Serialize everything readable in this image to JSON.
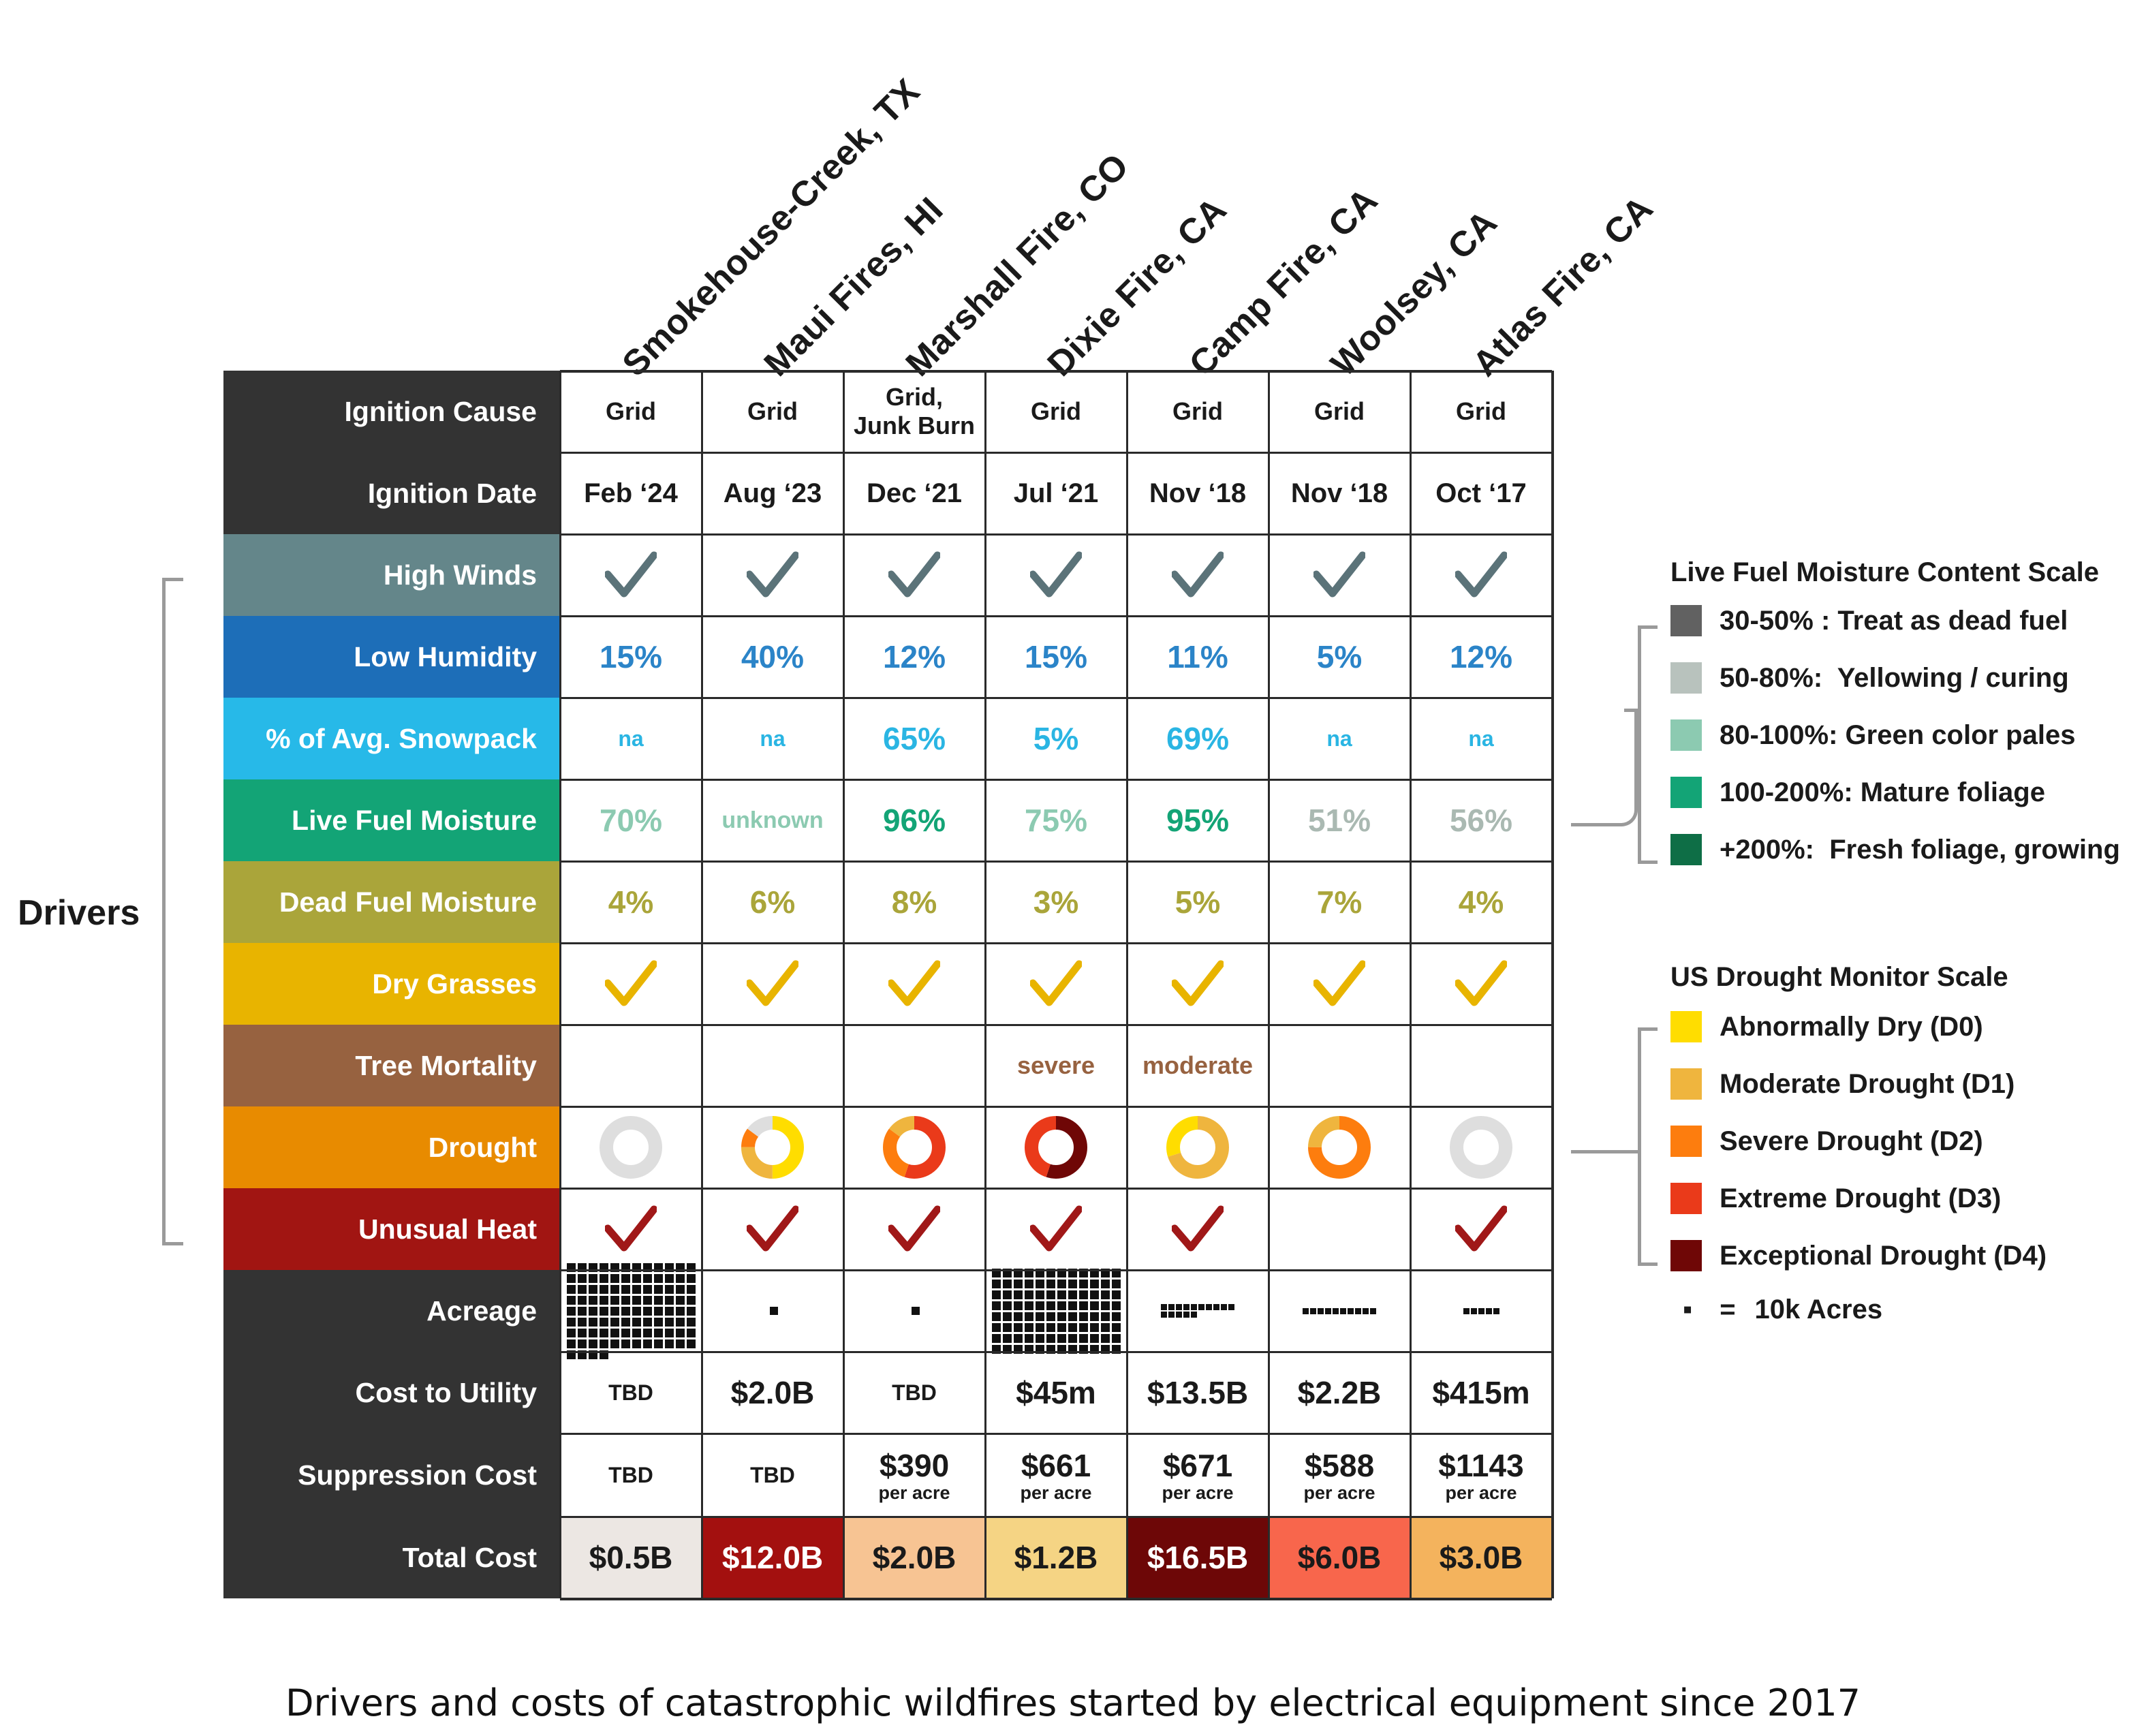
{
  "colors": {
    "label_dark": "#333333",
    "high_winds": "#64868a",
    "low_humidity": "#1d6eb8",
    "snowpack": "#27b9e8",
    "live_fuel": "#13a476",
    "dead_fuel": "#aaa53a",
    "dry_grasses": "#e8b400",
    "tree_mortality": "#976240",
    "drought": "#e88b00",
    "unusual_heat": "#a11512",
    "check_wind": "#5b7379",
    "check_grass": "#e8b400",
    "check_heat": "#a01818",
    "humidity_text": "#2b84c8",
    "snowpack_text": "#2ab5e3",
    "dead_fuel_text": "#aaa53a",
    "tree_text": "#976240"
  },
  "chart_data": {
    "type": "table",
    "columns": [
      "Smokehouse-Creek, TX",
      "Maui Fires, HI",
      "Marshall Fire, CO",
      "Dixie Fire, CA",
      "Camp Fire, CA",
      "Woolsey, CA",
      "Atlas Fire, CA"
    ],
    "row_labels": {
      "ignition_cause": "Ignition Cause",
      "ignition_date": "Ignition Date",
      "high_winds": "High Winds",
      "low_humidity": "Low Humidity",
      "snowpack": "% of Avg. Snowpack",
      "live_fuel": "Live Fuel Moisture",
      "dead_fuel": "Dead Fuel Moisture",
      "dry_grasses": "Dry Grasses",
      "tree_mortality": "Tree Mortality",
      "drought": "Drought",
      "unusual_heat": "Unusual Heat",
      "acreage": "Acreage",
      "cost_utility": "Cost to Utility",
      "suppression": "Suppression Cost",
      "total": "Total Cost"
    },
    "ignition_cause": [
      [
        "Grid"
      ],
      [
        "Grid"
      ],
      [
        "Grid,",
        "Junk Burn"
      ],
      [
        "Grid"
      ],
      [
        "Grid"
      ],
      [
        "Grid"
      ],
      [
        "Grid"
      ]
    ],
    "ignition_date": [
      "Feb ‘24",
      "Aug ‘23",
      "Dec ‘21",
      "Jul ‘21",
      "Nov ‘18",
      "Nov ‘18",
      "Oct ‘17"
    ],
    "high_winds": [
      true,
      true,
      true,
      true,
      true,
      true,
      true
    ],
    "low_humidity": [
      "15%",
      "40%",
      "12%",
      "15%",
      "11%",
      "5%",
      "12%"
    ],
    "snowpack": [
      "na",
      "na",
      "65%",
      "5%",
      "69%",
      "na",
      "na"
    ],
    "live_fuel": [
      {
        "text": "70%",
        "color": "#8ccab1"
      },
      {
        "text": "unknown",
        "color": "#8ccab1"
      },
      {
        "text": "96%",
        "color": "#13a476"
      },
      {
        "text": "75%",
        "color": "#8ccab1"
      },
      {
        "text": "95%",
        "color": "#13a476"
      },
      {
        "text": "51%",
        "color": "#aab9b2"
      },
      {
        "text": "56%",
        "color": "#aab9b2"
      }
    ],
    "dead_fuel": [
      "4%",
      "6%",
      "8%",
      "3%",
      "5%",
      "7%",
      "4%"
    ],
    "dry_grasses": [
      true,
      true,
      true,
      true,
      true,
      true,
      true
    ],
    "tree_mortality": [
      "",
      "",
      "",
      "severe",
      "moderate",
      "",
      ""
    ],
    "drought": [
      [
        {
          "cat": "none",
          "frac": 1.0
        }
      ],
      [
        {
          "cat": "D0",
          "frac": 0.5
        },
        {
          "cat": "D1",
          "frac": 0.25
        },
        {
          "cat": "D2",
          "frac": 0.1
        },
        {
          "cat": "none",
          "frac": 0.15
        }
      ],
      [
        {
          "cat": "D3",
          "frac": 0.55
        },
        {
          "cat": "D2",
          "frac": 0.3
        },
        {
          "cat": "D1",
          "frac": 0.15
        }
      ],
      [
        {
          "cat": "D4",
          "frac": 0.55
        },
        {
          "cat": "D3",
          "frac": 0.45
        }
      ],
      [
        {
          "cat": "D1",
          "frac": 0.7
        },
        {
          "cat": "D0",
          "frac": 0.3
        }
      ],
      [
        {
          "cat": "D2",
          "frac": 0.75
        },
        {
          "cat": "D1",
          "frac": 0.25
        }
      ],
      [
        {
          "cat": "none",
          "frac": 1.0
        }
      ]
    ],
    "drought_colors": {
      "none": "#dedede",
      "D0": "#ffdd00",
      "D1": "#efb53e",
      "D2": "#fd7d0e",
      "D3": "#ea3a1a",
      "D4": "#6f0706"
    },
    "unusual_heat": [
      true,
      true,
      true,
      true,
      true,
      false,
      true
    ],
    "acreage_squares": [
      100,
      1,
      1,
      96,
      15,
      10,
      5
    ],
    "cost_utility": [
      "TBD",
      "$2.0B",
      "TBD",
      "$45m",
      "$13.5B",
      "$2.2B",
      "$415m"
    ],
    "suppression": [
      {
        "value": "TBD",
        "unit": ""
      },
      {
        "value": "TBD",
        "unit": ""
      },
      {
        "value": "$390",
        "unit": "per acre"
      },
      {
        "value": "$661",
        "unit": "per acre"
      },
      {
        "value": "$671",
        "unit": "per acre"
      },
      {
        "value": "$588",
        "unit": "per acre"
      },
      {
        "value": "$1143",
        "unit": "per acre"
      }
    ],
    "total_cost": [
      {
        "text": "$0.5B",
        "bg": "#ece7e3",
        "fg": "#1a1a1a"
      },
      {
        "text": "$12.0B",
        "bg": "#a3100f",
        "fg": "#ffffff"
      },
      {
        "text": "$2.0B",
        "bg": "#f7c493",
        "fg": "#1a1a1a"
      },
      {
        "text": "$1.2B",
        "bg": "#f5d484",
        "fg": "#1a1a1a"
      },
      {
        "text": "$16.5B",
        "bg": "#6d0707",
        "fg": "#ffffff"
      },
      {
        "text": "$6.0B",
        "bg": "#f8664c",
        "fg": "#1a1a1a"
      },
      {
        "text": "$3.0B",
        "bg": "#f4b35d",
        "fg": "#1a1a1a"
      }
    ]
  },
  "drivers_label": "Drivers",
  "legend_moisture": {
    "title": "Live Fuel Moisture Content Scale",
    "items": [
      {
        "label": "30-50% : Treat as dead fuel",
        "color": "#616161"
      },
      {
        "label": "50-80%:  Yellowing / curing",
        "color": "#b8c2bd"
      },
      {
        "label": "80-100%: Green color pales",
        "color": "#8ccab1"
      },
      {
        "label": "100-200%: Mature foliage",
        "color": "#13a476"
      },
      {
        "label": "+200%:  Fresh foliage, growing",
        "color": "#0e6e46"
      }
    ]
  },
  "legend_drought": {
    "title": "US Drought Monitor Scale",
    "items": [
      {
        "label": "Abnormally Dry (D0)",
        "color": "#ffdd00"
      },
      {
        "label": "Moderate Drought (D1)",
        "color": "#efb53e"
      },
      {
        "label": "Severe Drought (D2)",
        "color": "#fd7d0e"
      },
      {
        "label": "Extreme Drought (D3)",
        "color": "#ea3a1a"
      },
      {
        "label": "Exceptional Drought (D4)",
        "color": "#6f0706"
      }
    ]
  },
  "acre_key": {
    "symbol": "▪",
    "eq": "=",
    "label": "10k Acres"
  },
  "caption": "Drivers and costs of catastrophic wildfires started by electrical equipment since 2017"
}
